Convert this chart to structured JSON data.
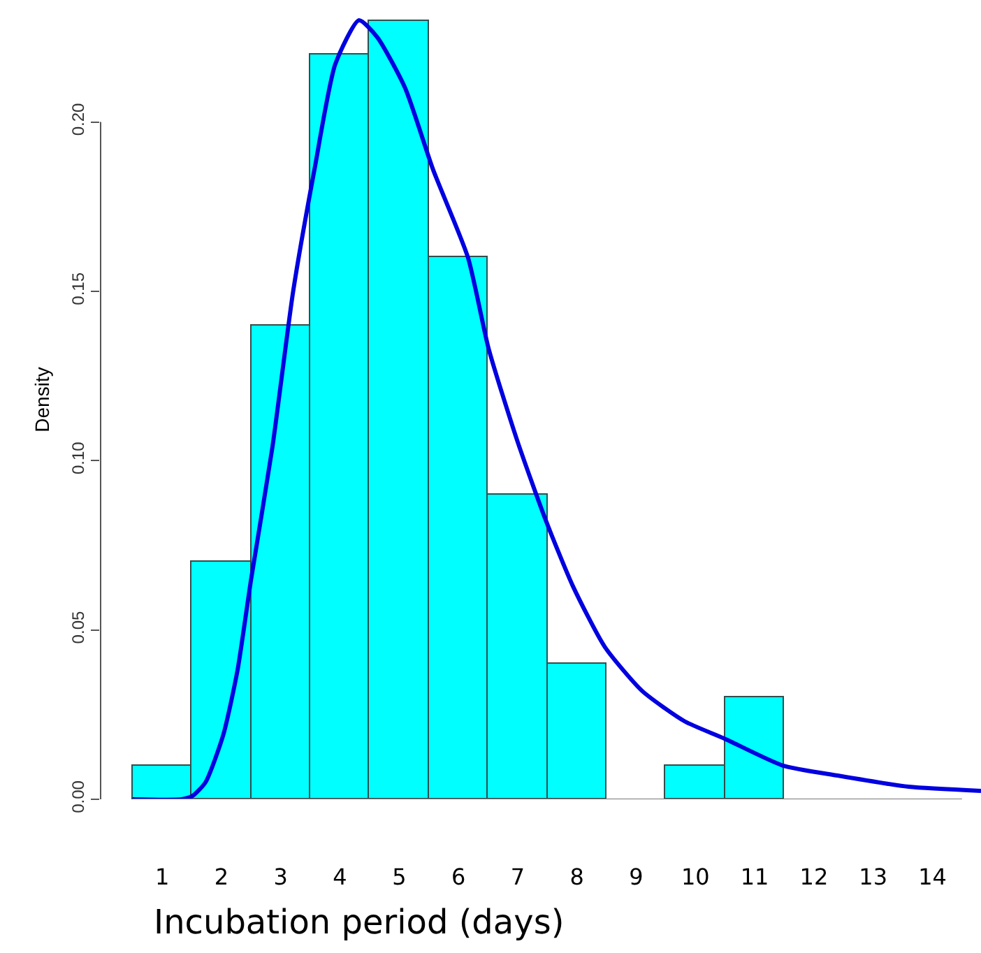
{
  "chart_data": {
    "type": "histogram",
    "xlabel": "Incubation period (days)",
    "ylabel": "Density",
    "bins": [
      0.5,
      1.5,
      2.5,
      3.5,
      4.5,
      5.5,
      6.5,
      7.5,
      8.5,
      9.5,
      10.5,
      11.5
    ],
    "values": [
      0.01,
      0.07,
      0.14,
      0.22,
      0.23,
      0.16,
      0.09,
      0.04,
      0,
      0.01,
      0.03
    ],
    "color": "#00ffff",
    "series": [
      {
        "type": "line",
        "color": "#0000e0",
        "x": [
          0.5,
          1.33,
          1.51,
          1.73,
          2.03,
          2.27,
          2.5,
          2.86,
          3.21,
          3.57,
          3.92,
          4.32,
          4.63,
          5.1,
          5.57,
          6.16,
          6.51,
          6.99,
          7.46,
          7.93,
          8.47,
          9.1,
          9.82,
          10.48,
          11.47,
          12.4,
          13.6,
          14.82
        ],
        "values": [
          0,
          0,
          0.001,
          0.005,
          0.019,
          0.038,
          0.065,
          0.104,
          0.15,
          0.186,
          0.217,
          0.23,
          0.225,
          0.21,
          0.186,
          0.16,
          0.133,
          0.106,
          0.083,
          0.063,
          0.045,
          0.032,
          0.023,
          0.018,
          0.01,
          0.007,
          0.0037,
          0.0025
        ]
      }
    ],
    "xlim": [
      -0.04,
      14.82
    ],
    "xticks": [
      1,
      2,
      3,
      4,
      5,
      6,
      7,
      8,
      9,
      10,
      11,
      12,
      13,
      14
    ],
    "ylim": [
      0,
      0.236
    ],
    "yticks": [
      {
        "value": 0,
        "label": "0.00"
      },
      {
        "value": 0.05,
        "label": "0.05"
      },
      {
        "value": 0.1,
        "label": "0.10"
      },
      {
        "value": 0.15,
        "label": "0.15"
      },
      {
        "value": 0.2,
        "label": "0.20"
      }
    ],
    "grid": false,
    "legend": false
  }
}
